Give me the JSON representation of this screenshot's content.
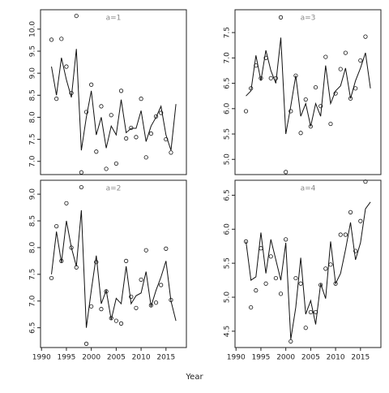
{
  "xlabel": "Year",
  "chart_data": [
    {
      "type": "scatter_line",
      "label": "a=1",
      "x": [
        1992,
        1993,
        1994,
        1995,
        1996,
        1997,
        1998,
        1999,
        2000,
        2001,
        2002,
        2003,
        2004,
        2005,
        2006,
        2007,
        2008,
        2009,
        2010,
        2011,
        2012,
        2013,
        2014,
        2015,
        2016,
        2017
      ],
      "values": [
        9.76,
        8.42,
        9.78,
        9.15,
        8.55,
        10.3,
        6.75,
        8.12,
        8.74,
        7.22,
        8.25,
        6.83,
        8.05,
        6.95,
        8.6,
        7.52,
        7.76,
        7.55,
        8.42,
        7.09,
        7.63,
        8.02,
        8.1,
        7.5,
        7.2,
        null
      ],
      "line_values": [
        9.15,
        8.5,
        9.35,
        8.85,
        8.45,
        9.55,
        7.25,
        8.0,
        8.6,
        7.6,
        8.0,
        7.3,
        7.8,
        7.6,
        8.4,
        7.65,
        7.75,
        7.75,
        8.15,
        7.45,
        7.8,
        8.0,
        8.25,
        7.6,
        7.25,
        8.3
      ],
      "xlim": [
        1989.8,
        2019.1
      ],
      "ylim": [
        6.7,
        10.44
      ],
      "yticks": [
        {
          "value": 7,
          "label": "7.0"
        },
        7.5,
        {
          "value": 8,
          "label": "8.0"
        },
        8.5,
        {
          "value": 9,
          "label": "9.0"
        },
        9.5,
        {
          "value": 10,
          "label": "10.0"
        }
      ]
    },
    {
      "type": "scatter_line",
      "label": "a=3",
      "x": [
        1992,
        1993,
        1994,
        1995,
        1996,
        1997,
        1998,
        1999,
        2000,
        2001,
        2002,
        2003,
        2004,
        2005,
        2006,
        2007,
        2008,
        2009,
        2010,
        2011,
        2012,
        2013,
        2014,
        2015,
        2016,
        2017
      ],
      "values": [
        5.95,
        6.4,
        6.85,
        6.6,
        7.0,
        6.6,
        6.6,
        7.8,
        4.75,
        5.95,
        6.65,
        5.52,
        6.18,
        5.65,
        6.42,
        6.05,
        7.02,
        5.7,
        6.3,
        6.78,
        7.1,
        6.2,
        6.4,
        6.95,
        7.42,
        null
      ],
      "line_values": [
        6.25,
        6.35,
        7.05,
        6.55,
        7.15,
        6.75,
        6.5,
        7.4,
        5.5,
        6.05,
        6.65,
        5.85,
        6.1,
        5.65,
        6.1,
        5.85,
        6.85,
        6.1,
        6.35,
        6.45,
        6.8,
        6.2,
        6.55,
        6.8,
        7.1,
        6.4
      ],
      "xlim": [
        1989.8,
        2019.1
      ],
      "ylim": [
        4.7,
        7.95
      ],
      "yticks": [
        {
          "value": 5,
          "label": "5.0"
        },
        5.5,
        {
          "value": 6,
          "label": "6.0"
        },
        6.5,
        {
          "value": 7,
          "label": "7.0"
        },
        7.5
      ]
    },
    {
      "type": "scatter_line",
      "label": "a=2",
      "x": [
        1992,
        1993,
        1994,
        1995,
        1996,
        1997,
        1998,
        1999,
        2000,
        2001,
        2002,
        2003,
        2004,
        2005,
        2006,
        2007,
        2008,
        2009,
        2010,
        2011,
        2012,
        2013,
        2014,
        2015,
        2016,
        2017
      ],
      "values": [
        7.43,
        8.4,
        7.75,
        8.83,
        8.0,
        7.63,
        9.13,
        6.2,
        6.9,
        7.73,
        6.85,
        7.18,
        6.68,
        6.63,
        6.58,
        7.75,
        7.08,
        6.87,
        7.4,
        7.95,
        6.92,
        6.97,
        7.3,
        7.98,
        7.02,
        null
      ],
      "line_values": [
        7.5,
        8.3,
        7.72,
        8.5,
        8.0,
        7.65,
        8.7,
        6.5,
        7.2,
        7.85,
        6.95,
        7.2,
        6.65,
        7.05,
        6.95,
        7.65,
        6.95,
        7.1,
        7.15,
        7.55,
        6.9,
        7.2,
        7.45,
        7.75,
        7.0,
        6.63
      ],
      "xlim": [
        1989.8,
        2019.1
      ],
      "ylim": [
        6.13,
        9.26
      ],
      "xticks": [
        1990,
        1995,
        2000,
        2005,
        2010,
        2015
      ],
      "yticks": [
        6.5,
        {
          "value": 7,
          "label": "7.0"
        },
        7.5,
        {
          "value": 8,
          "label": "8.0"
        },
        8.5,
        {
          "value": 9,
          "label": "9.0"
        }
      ]
    },
    {
      "type": "scatter_line",
      "label": "a=4",
      "x": [
        1992,
        1993,
        1994,
        1995,
        1996,
        1997,
        1998,
        1999,
        2000,
        2001,
        2002,
        2003,
        2004,
        2005,
        2006,
        2007,
        2008,
        2009,
        2010,
        2011,
        2012,
        2013,
        2014,
        2015,
        2016,
        2017
      ],
      "values": [
        5.82,
        4.85,
        5.1,
        5.72,
        5.2,
        5.6,
        5.28,
        5.05,
        5.85,
        4.35,
        5.28,
        5.2,
        4.55,
        4.78,
        4.78,
        5.18,
        5.42,
        5.48,
        5.2,
        5.92,
        5.92,
        6.25,
        5.68,
        6.12,
        6.7,
        null
      ],
      "line_values": [
        5.82,
        5.25,
        5.3,
        5.95,
        5.35,
        5.85,
        5.55,
        5.25,
        5.8,
        4.38,
        4.85,
        5.58,
        4.75,
        4.95,
        4.6,
        5.2,
        4.98,
        5.82,
        5.2,
        5.35,
        5.7,
        6.1,
        5.55,
        5.8,
        6.3,
        6.4
      ],
      "xlim": [
        1989.8,
        2019.1
      ],
      "ylim": [
        4.26,
        6.72
      ],
      "xticks": [
        1990,
        1995,
        2000,
        2005,
        2010,
        2015
      ],
      "yticks": [
        4.5,
        {
          "value": 5,
          "label": "5.0"
        },
        5.5,
        {
          "value": 6,
          "label": "6.0"
        },
        6.5
      ]
    }
  ]
}
